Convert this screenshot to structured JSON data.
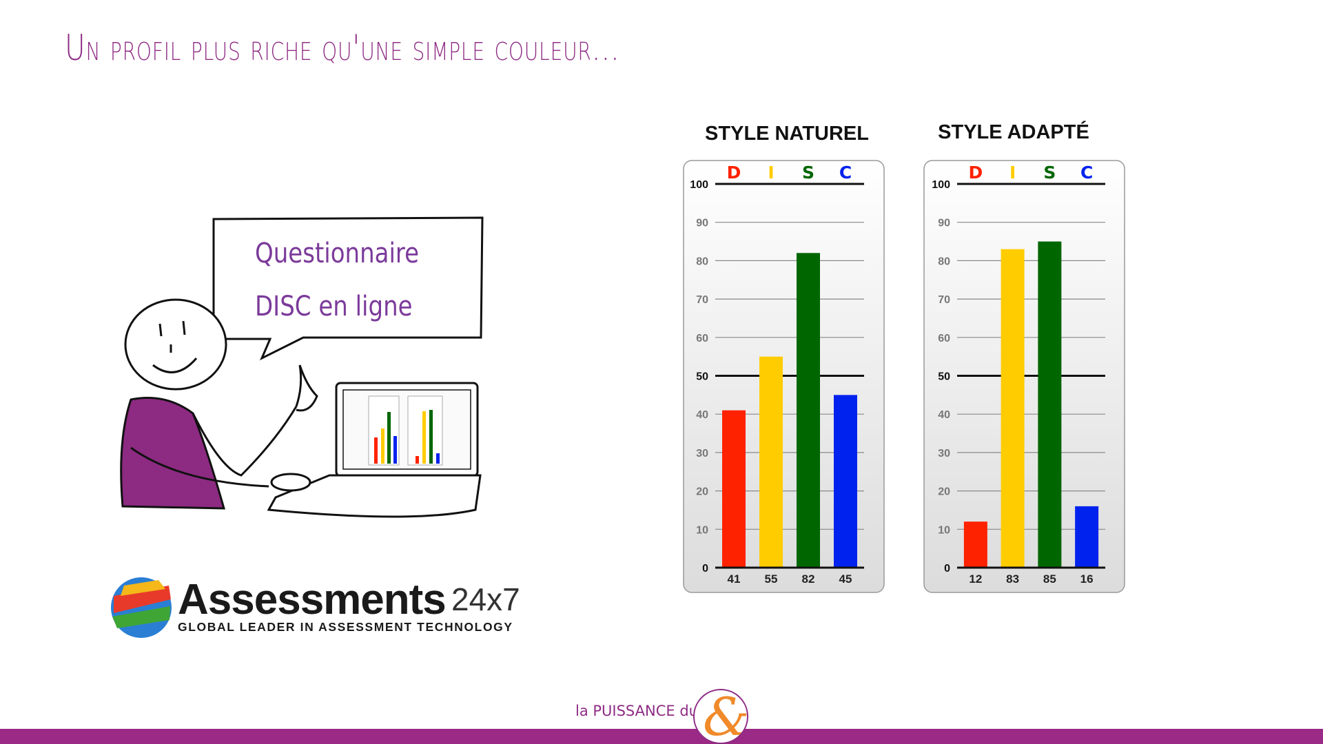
{
  "slide": {
    "title": "Un profil plus riche qu'une simple couleur...",
    "bubble_line1": "Questionnaire",
    "bubble_line2": "DISC en ligne",
    "logo": {
      "name": "Assessments",
      "suffix": "24x7",
      "tagline": "GLOBAL LEADER IN ASSESSMENT TECHNOLOGY"
    },
    "footer": {
      "text": "la PUISSANCE du",
      "symbol": "&"
    },
    "colors": {
      "purple": "#9a2a86",
      "D": "#ff2200",
      "I": "#ffcc00",
      "S": "#006600",
      "C": "#0022ee"
    }
  },
  "chart_data": [
    {
      "type": "bar",
      "title": "STYLE NATUREL",
      "categories": [
        "D",
        "I",
        "S",
        "C"
      ],
      "values": [
        41,
        55,
        82,
        45
      ],
      "ylim": [
        0,
        100
      ],
      "yticks": [
        0,
        10,
        20,
        30,
        40,
        50,
        60,
        70,
        80,
        90,
        100
      ],
      "grid": true
    },
    {
      "type": "bar",
      "title": "STYLE ADAPTÉ",
      "categories": [
        "D",
        "I",
        "S",
        "C"
      ],
      "values": [
        12,
        83,
        85,
        16
      ],
      "ylim": [
        0,
        100
      ],
      "yticks": [
        0,
        10,
        20,
        30,
        40,
        50,
        60,
        70,
        80,
        90,
        100
      ],
      "grid": true
    }
  ]
}
